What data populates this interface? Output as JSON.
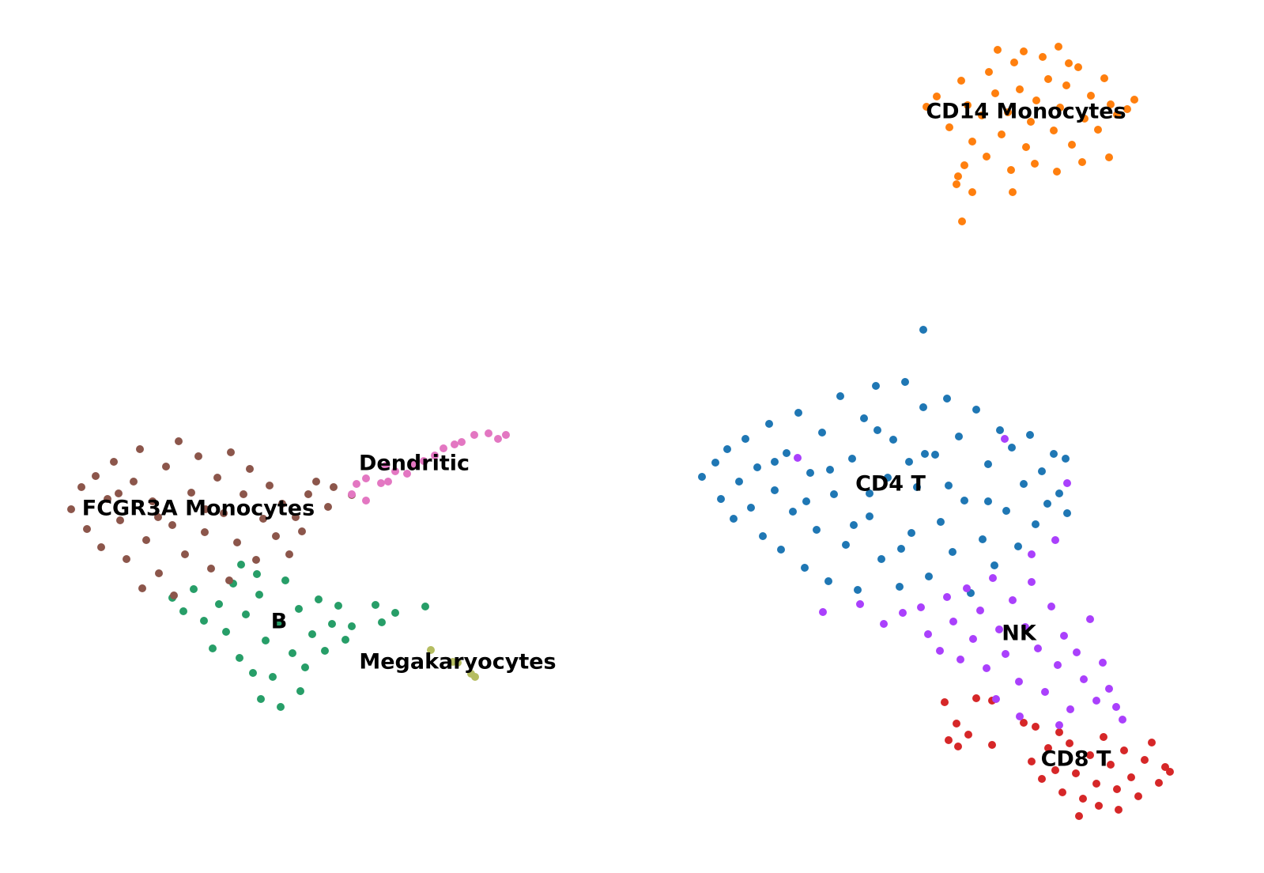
{
  "chart_data": {
    "type": "scatter",
    "xlim": [
      0,
      159.9
    ],
    "ylim": [
      0,
      110.4
    ],
    "point_radius": 5,
    "series": [
      {
        "name": "CD4 T",
        "color": "#1f77b4",
        "x": [
          88.8,
          90.5,
          91.2,
          92.0,
          92.8,
          93.5,
          94.3,
          95.0,
          95.8,
          96.5,
          97.3,
          98.0,
          98.8,
          99.5,
          100.3,
          101.0,
          101.8,
          102.5,
          103.3,
          104.0,
          104.8,
          105.5,
          106.3,
          107.0,
          107.8,
          108.5,
          109.3,
          110.0,
          110.8,
          111.5,
          112.3,
          113.0,
          113.8,
          114.5,
          115.3,
          116.0,
          116.8,
          117.5,
          118.3,
          119.0,
          119.8,
          120.5,
          121.3,
          122.0,
          122.8,
          123.5,
          124.3,
          125.0,
          125.8,
          126.5,
          127.3,
          128.0,
          128.8,
          129.5,
          130.3,
          131.0,
          131.8,
          132.5,
          133.3,
          134.0,
          134.8,
          135.0,
          105.0,
          108.0,
          111.0,
          114.0,
          117.0,
          120.0,
          110.0,
          115.0,
          102.0,
          98.0,
          125.0,
          116.8
        ],
        "values": [
          50.1,
          51.9,
          47.3,
          53.6,
          44.8,
          49.5,
          54.9,
          46.2,
          51.3,
          42.6,
          56.8,
          48.4,
          40.9,
          53.1,
          45.7,
          58.2,
          38.6,
          50.6,
          43.4,
          55.7,
          36.9,
          47.9,
          60.3,
          41.5,
          52.4,
          35.8,
          57.5,
          45.1,
          61.6,
          39.7,
          50.0,
          54.8,
          36.2,
          62.1,
          43.0,
          48.8,
          58.9,
          37.5,
          52.9,
          44.4,
          60.0,
          40.6,
          55.2,
          47.1,
          35.4,
          58.6,
          42.2,
          51.7,
          38.9,
          56.0,
          45.8,
          53.8,
          41.3,
          49.2,
          55.4,
          44.1,
          50.8,
          46.7,
          53.0,
          48.0,
          52.4,
          45.5,
          51.0,
          44.0,
          56.0,
          41.0,
          53.0,
          49.0,
          48.0,
          52.0,
          47.0,
          52.0,
          47.0,
          68.7
        ]
      },
      {
        "name": "CD14 Monocytes",
        "color": "#ff7f0e",
        "x": [
          117.2,
          118.5,
          120.1,
          121.6,
          122.4,
          123.0,
          124.2,
          125.1,
          125.9,
          126.7,
          127.5,
          128.3,
          129.0,
          129.8,
          130.4,
          131.1,
          131.9,
          132.6,
          133.3,
          134.1,
          134.9,
          135.6,
          136.4,
          137.2,
          138.0,
          138.9,
          139.7,
          140.5,
          141.3,
          142.6,
          143.5,
          122.0,
          124.8,
          127.9,
          130.9,
          133.7,
          136.9,
          140.3,
          121.2,
          126.2,
          129.5,
          133.9,
          135.2,
          128.1,
          123.0,
          121.0,
          121.7
        ],
        "values": [
          96.9,
          98.2,
          94.3,
          100.2,
          97.1,
          92.5,
          95.8,
          101.3,
          98.6,
          93.4,
          96.2,
          102.5,
          99.1,
          91.8,
          95.0,
          97.7,
          103.2,
          100.4,
          93.9,
          96.8,
          99.6,
          92.1,
          101.9,
          95.4,
          98.3,
          94.0,
          100.5,
          97.2,
          95.9,
          96.6,
          97.8,
          89.5,
          90.6,
          88.9,
          89.7,
          88.7,
          89.9,
          90.5,
          88.1,
          104.1,
          103.9,
          104.5,
          102.4,
          86.1,
          86.1,
          87.1,
          82.4
        ]
      },
      {
        "name": "B",
        "color": "#279e68",
        "x": [
          21.8,
          23.2,
          24.5,
          25.8,
          26.9,
          27.7,
          28.6,
          29.5,
          30.3,
          31.1,
          32.0,
          32.8,
          33.6,
          34.5,
          35.3,
          36.1,
          37.0,
          37.8,
          38.6,
          39.5,
          40.3,
          41.1,
          42.0,
          42.8,
          43.7,
          44.5,
          30.5,
          32.5,
          47.5,
          50.0,
          53.8,
          48.3,
          35.5,
          33.0,
          38.0
        ],
        "values": [
          34.8,
          33.1,
          35.9,
          31.9,
          28.4,
          34.0,
          30.5,
          36.6,
          27.2,
          32.7,
          25.3,
          35.2,
          29.4,
          24.8,
          31.6,
          37.0,
          27.8,
          33.4,
          26.0,
          30.2,
          34.6,
          28.1,
          31.5,
          33.8,
          29.5,
          31.2,
          39.0,
          37.8,
          33.9,
          32.9,
          33.7,
          31.7,
          21.0,
          22.0,
          23.0
        ]
      },
      {
        "name": "CD8 T",
        "color": "#d62728",
        "x": [
          130.5,
          131.8,
          132.6,
          133.5,
          134.4,
          135.3,
          136.1,
          137.0,
          137.9,
          138.7,
          139.6,
          140.5,
          141.3,
          142.2,
          143.1,
          144.0,
          144.8,
          145.7,
          146.6,
          147.4,
          148.0,
          139.0,
          136.5,
          141.5,
          134.0,
          131.0,
          119.5,
          121.0,
          123.5,
          125.5,
          120.0,
          122.5,
          125.5,
          129.5,
          121.2
        ],
        "values": [
          14.1,
          11.9,
          15.8,
          13.0,
          10.2,
          16.4,
          12.6,
          9.4,
          14.9,
          11.3,
          17.2,
          13.7,
          10.6,
          15.5,
          12.1,
          9.7,
          14.3,
          16.5,
          11.4,
          13.4,
          12.8,
          8.5,
          7.2,
          8.0,
          17.8,
          18.5,
          21.6,
          18.9,
          22.1,
          21.8,
          16.8,
          17.5,
          16.2,
          19.0,
          16.0
        ]
      },
      {
        "name": "NK",
        "color": "#aa40fc",
        "x": [
          111.8,
          114.2,
          116.5,
          117.4,
          118.9,
          119.8,
          120.6,
          121.5,
          122.3,
          123.1,
          124.0,
          124.8,
          125.6,
          126.4,
          127.2,
          128.1,
          128.9,
          129.7,
          130.5,
          131.3,
          132.2,
          133.0,
          133.8,
          134.6,
          135.4,
          136.2,
          137.1,
          137.9,
          138.7,
          139.5,
          140.3,
          141.2,
          142.0,
          126.0,
          129.0,
          134.0,
          130.5,
          133.5,
          127.1,
          135.0,
          104.1,
          108.8,
          100.9
        ],
        "values": [
          31.5,
          32.9,
          33.6,
          30.2,
          28.1,
          34.9,
          31.8,
          27.0,
          36.0,
          29.6,
          33.2,
          25.9,
          37.3,
          30.8,
          27.7,
          34.5,
          24.2,
          31.1,
          36.8,
          28.4,
          22.9,
          33.7,
          26.3,
          30.0,
          20.7,
          27.9,
          24.5,
          32.1,
          21.8,
          26.6,
          23.3,
          21.0,
          19.4,
          22.0,
          19.8,
          18.7,
          40.3,
          42.1,
          54.9,
          49.3,
          33.0,
          34.0,
          52.5
        ]
      },
      {
        "name": "FCGR3A Monocytes",
        "color": "#8c564b",
        "x": [
          9.0,
          10.3,
          11.0,
          12.1,
          12.8,
          13.6,
          14.4,
          15.2,
          16.0,
          16.9,
          17.7,
          18.5,
          19.3,
          20.1,
          21.0,
          21.8,
          22.6,
          23.4,
          24.2,
          25.1,
          25.9,
          26.7,
          27.5,
          28.3,
          29.2,
          30.0,
          30.8,
          31.6,
          32.4,
          33.3,
          34.1,
          34.9,
          35.7,
          36.6,
          37.4,
          38.2,
          39.0,
          40.0,
          41.5,
          42.2,
          44.5,
          18.0,
          22.0,
          29.0,
          20.0,
          26.0,
          15.0
        ],
        "values": [
          46.0,
          48.8,
          43.5,
          50.2,
          41.2,
          47.3,
          52.0,
          44.6,
          39.7,
          49.5,
          53.6,
          42.1,
          47.0,
          37.9,
          51.4,
          44.0,
          54.6,
          40.3,
          48.1,
          52.7,
          43.1,
          38.5,
          50.0,
          45.5,
          53.2,
          41.8,
          47.9,
          51.1,
          39.6,
          44.8,
          49.0,
          42.6,
          46.7,
          40.3,
          45.0,
          43.2,
          47.9,
          49.5,
          46.3,
          48.8,
          47.8,
          36.0,
          35.1,
          37.0,
          45.0,
          46.0,
          48.0
        ]
      },
      {
        "name": "Dendritic",
        "color": "#e377c2",
        "x": [
          44.5,
          46.3,
          45.1,
          48.2,
          49.1,
          50.0,
          51.5,
          52.4,
          53.6,
          55.0,
          56.1,
          57.5,
          58.4,
          60.0,
          61.8,
          63.0,
          64.0,
          46.3,
          48.8
        ],
        "values": [
          47.9,
          47.1,
          49.2,
          49.3,
          49.5,
          50.8,
          50.5,
          51.7,
          52.1,
          52.8,
          53.7,
          54.2,
          54.5,
          55.4,
          55.6,
          54.9,
          55.4,
          49.9,
          51.5
        ]
      },
      {
        "name": "Megakaryocytes",
        "color": "#b5bd61",
        "x": [
          54.5,
          57.3,
          57.9,
          59.6,
          60.1
        ],
        "values": [
          28.2,
          26.7,
          26.6,
          25.2,
          24.8
        ]
      }
    ]
  }
}
